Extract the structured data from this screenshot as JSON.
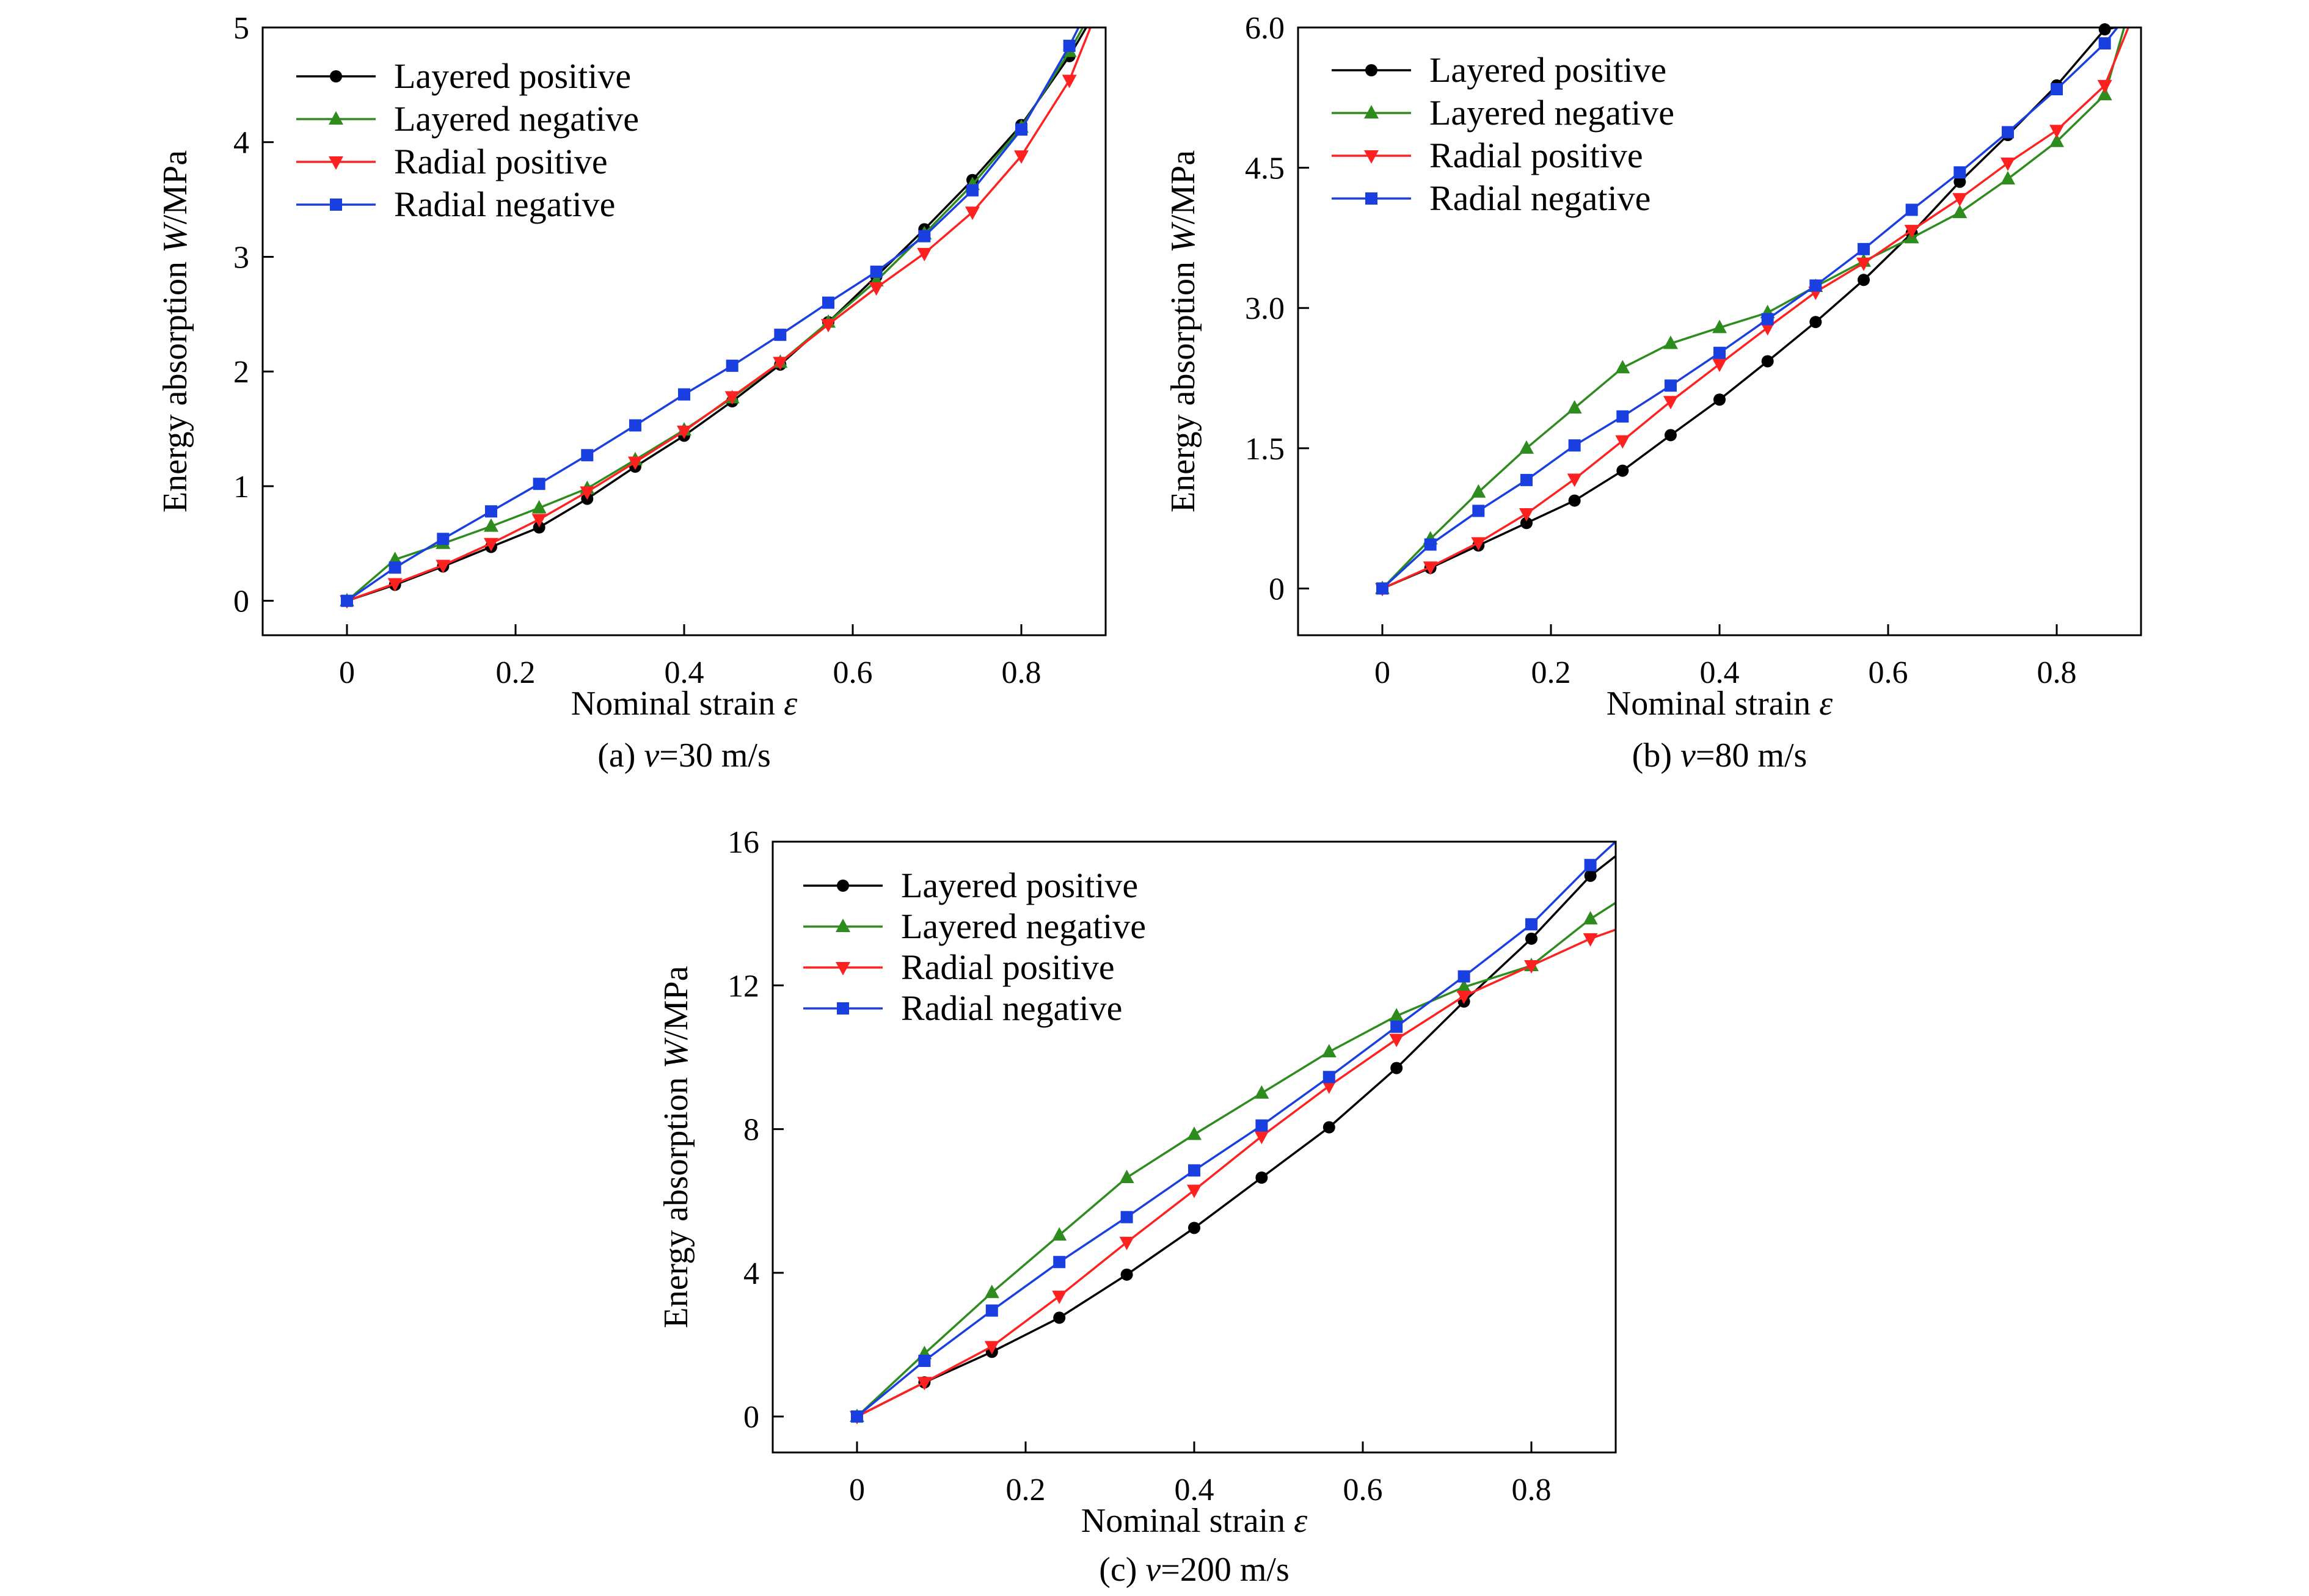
{
  "chart_data": [
    {
      "type": "line",
      "caption": {
        "prefix": "(a) ",
        "var": "v",
        "rest": "=30 m/s"
      },
      "xlabel": {
        "text": "Nominal strain ",
        "var": "ε"
      },
      "ylabel": {
        "text": "Energy absorption ",
        "var": "W",
        "unit": "/MPa"
      },
      "xlim": [
        -0.1,
        0.9
      ],
      "ylim": [
        -0.3,
        5
      ],
      "xticks": [
        0,
        0.2,
        0.4,
        0.6,
        0.8
      ],
      "xtick_labels": [
        "0",
        "0.2",
        "0.4",
        "0.6",
        "0.8"
      ],
      "yticks": [
        0,
        1,
        2,
        3,
        4,
        5
      ],
      "ytick_labels": [
        "0",
        "1",
        "2",
        "3",
        "4",
        "5"
      ],
      "legend": "top-left",
      "grid": false,
      "series": [
        {
          "name": "Layered positive",
          "color": "#000000",
          "marker": "circle",
          "points": [
            [
              0,
              0
            ],
            [
              0.057,
              0.14
            ],
            [
              0.114,
              0.3
            ],
            [
              0.171,
              0.47
            ],
            [
              0.228,
              0.64
            ],
            [
              0.285,
              0.89
            ],
            [
              0.342,
              1.17
            ],
            [
              0.4,
              1.44
            ],
            [
              0.457,
              1.74
            ],
            [
              0.514,
              2.06
            ],
            [
              0.571,
              2.43
            ],
            [
              0.628,
              2.83
            ],
            [
              0.685,
              3.24
            ],
            [
              0.742,
              3.67
            ],
            [
              0.8,
              4.15
            ],
            [
              0.857,
              4.75
            ]
          ],
          "tail": [
            0.877,
            5.0
          ]
        },
        {
          "name": "Layered negative",
          "color": "#2e8b1e",
          "marker": "triangle-up",
          "points": [
            [
              0,
              0
            ],
            [
              0.057,
              0.36
            ],
            [
              0.114,
              0.5
            ],
            [
              0.171,
              0.65
            ],
            [
              0.228,
              0.81
            ],
            [
              0.285,
              0.98
            ],
            [
              0.342,
              1.23
            ],
            [
              0.4,
              1.49
            ],
            [
              0.457,
              1.77
            ],
            [
              0.514,
              2.08
            ],
            [
              0.571,
              2.43
            ],
            [
              0.628,
              2.79
            ],
            [
              0.685,
              3.2
            ],
            [
              0.742,
              3.63
            ],
            [
              0.8,
              4.13
            ],
            [
              0.857,
              4.79
            ]
          ],
          "tail": [
            0.873,
            5.0
          ]
        },
        {
          "name": "Radial positive",
          "color": "#ff2020",
          "marker": "triangle-down",
          "points": [
            [
              0,
              0
            ],
            [
              0.057,
              0.15
            ],
            [
              0.114,
              0.31
            ],
            [
              0.171,
              0.5
            ],
            [
              0.228,
              0.71
            ],
            [
              0.285,
              0.95
            ],
            [
              0.342,
              1.21
            ],
            [
              0.4,
              1.48
            ],
            [
              0.457,
              1.78
            ],
            [
              0.514,
              2.08
            ],
            [
              0.571,
              2.41
            ],
            [
              0.628,
              2.73
            ],
            [
              0.685,
              3.03
            ],
            [
              0.742,
              3.39
            ],
            [
              0.8,
              3.88
            ],
            [
              0.857,
              4.54
            ]
          ],
          "tail": [
            0.882,
            5.0
          ]
        },
        {
          "name": "Radial negative",
          "color": "#1a3fe0",
          "marker": "square",
          "points": [
            [
              0,
              0
            ],
            [
              0.057,
              0.29
            ],
            [
              0.114,
              0.54
            ],
            [
              0.171,
              0.78
            ],
            [
              0.228,
              1.02
            ],
            [
              0.285,
              1.27
            ],
            [
              0.342,
              1.53
            ],
            [
              0.4,
              1.8
            ],
            [
              0.457,
              2.05
            ],
            [
              0.514,
              2.32
            ],
            [
              0.571,
              2.6
            ],
            [
              0.628,
              2.87
            ],
            [
              0.685,
              3.18
            ],
            [
              0.742,
              3.58
            ],
            [
              0.8,
              4.11
            ],
            [
              0.857,
              4.84
            ]
          ],
          "tail": [
            0.868,
            5.0
          ]
        }
      ]
    },
    {
      "type": "line",
      "caption": {
        "prefix": "(b) ",
        "var": "v",
        "rest": "=80 m/s"
      },
      "xlabel": {
        "text": "Nominal strain ",
        "var": "ε"
      },
      "ylabel": {
        "text": "Energy absorption ",
        "var": "W",
        "unit": "/MPa"
      },
      "xlim": [
        -0.1,
        0.9
      ],
      "ylim": [
        -0.5,
        6
      ],
      "xticks": [
        0,
        0.2,
        0.4,
        0.6,
        0.8
      ],
      "xtick_labels": [
        "0",
        "0.2",
        "0.4",
        "0.6",
        "0.8"
      ],
      "yticks": [
        0,
        1.5,
        3,
        4.5,
        6
      ],
      "ytick_labels": [
        "0",
        "1.5",
        "3.0",
        "4.5",
        "6.0"
      ],
      "legend": "top-left",
      "grid": false,
      "series": [
        {
          "name": "Layered positive",
          "color": "#000000",
          "marker": "circle",
          "points": [
            [
              0,
              0
            ],
            [
              0.057,
              0.22
            ],
            [
              0.114,
              0.46
            ],
            [
              0.171,
              0.7
            ],
            [
              0.228,
              0.94
            ],
            [
              0.285,
              1.26
            ],
            [
              0.342,
              1.64
            ],
            [
              0.4,
              2.02
            ],
            [
              0.457,
              2.43
            ],
            [
              0.514,
              2.85
            ],
            [
              0.571,
              3.3
            ],
            [
              0.628,
              3.8
            ],
            [
              0.685,
              4.35
            ],
            [
              0.742,
              4.85
            ],
            [
              0.8,
              5.38
            ],
            [
              0.857,
              5.98
            ]
          ],
          "tail": [
            0.87,
            6.0
          ]
        },
        {
          "name": "Layered negative",
          "color": "#2e8b1e",
          "marker": "triangle-up",
          "points": [
            [
              0,
              0
            ],
            [
              0.057,
              0.53
            ],
            [
              0.114,
              1.03
            ],
            [
              0.171,
              1.5
            ],
            [
              0.228,
              1.93
            ],
            [
              0.285,
              2.36
            ],
            [
              0.342,
              2.62
            ],
            [
              0.4,
              2.79
            ],
            [
              0.457,
              2.95
            ],
            [
              0.514,
              3.23
            ],
            [
              0.571,
              3.5
            ],
            [
              0.628,
              3.75
            ],
            [
              0.685,
              4.02
            ],
            [
              0.742,
              4.38
            ],
            [
              0.8,
              4.78
            ],
            [
              0.857,
              5.28
            ]
          ],
          "tail": [
            0.88,
            6.0
          ]
        },
        {
          "name": "Radial positive",
          "color": "#ff2020",
          "marker": "triangle-down",
          "points": [
            [
              0,
              0
            ],
            [
              0.057,
              0.23
            ],
            [
              0.114,
              0.49
            ],
            [
              0.171,
              0.8
            ],
            [
              0.228,
              1.17
            ],
            [
              0.285,
              1.58
            ],
            [
              0.342,
              2.0
            ],
            [
              0.4,
              2.4
            ],
            [
              0.457,
              2.79
            ],
            [
              0.514,
              3.17
            ],
            [
              0.571,
              3.48
            ],
            [
              0.628,
              3.83
            ],
            [
              0.685,
              4.17
            ],
            [
              0.742,
              4.55
            ],
            [
              0.8,
              4.9
            ],
            [
              0.857,
              5.38
            ]
          ],
          "tail": [
            0.885,
            6.0
          ]
        },
        {
          "name": "Radial negative",
          "color": "#1a3fe0",
          "marker": "square",
          "points": [
            [
              0,
              0
            ],
            [
              0.057,
              0.47
            ],
            [
              0.114,
              0.83
            ],
            [
              0.171,
              1.16
            ],
            [
              0.228,
              1.53
            ],
            [
              0.285,
              1.84
            ],
            [
              0.342,
              2.17
            ],
            [
              0.4,
              2.52
            ],
            [
              0.457,
              2.88
            ],
            [
              0.514,
              3.24
            ],
            [
              0.571,
              3.63
            ],
            [
              0.628,
              4.05
            ],
            [
              0.685,
              4.45
            ],
            [
              0.742,
              4.88
            ],
            [
              0.8,
              5.34
            ],
            [
              0.857,
              5.83
            ]
          ],
          "tail": [
            0.872,
            6.0
          ]
        }
      ]
    },
    {
      "type": "line",
      "caption": {
        "prefix": "(c) ",
        "var": "v",
        "rest": "=200 m/s"
      },
      "xlabel": {
        "text": "Nominal strain ",
        "var": "ε"
      },
      "ylabel": {
        "text": "Energy absorption  ",
        "var": "W",
        "unit": "/MPa"
      },
      "xlim": [
        -0.1,
        0.9
      ],
      "ylim": [
        -1,
        16
      ],
      "xticks": [
        0,
        0.2,
        0.4,
        0.6,
        0.8
      ],
      "xtick_labels": [
        "0",
        "0.2",
        "0.4",
        "0.6",
        "0.8"
      ],
      "yticks": [
        0,
        4,
        8,
        12,
        16
      ],
      "ytick_labels": [
        "0",
        "4",
        "8",
        "12",
        "16"
      ],
      "legend": "top-left",
      "grid": false,
      "series": [
        {
          "name": "Layered positive",
          "color": "#000000",
          "marker": "circle",
          "points": [
            [
              0,
              0
            ],
            [
              0.08,
              0.95
            ],
            [
              0.16,
              1.8
            ],
            [
              0.24,
              2.75
            ],
            [
              0.32,
              3.95
            ],
            [
              0.4,
              5.25
            ],
            [
              0.48,
              6.65
            ],
            [
              0.56,
              8.05
            ],
            [
              0.64,
              9.7
            ],
            [
              0.72,
              11.55
            ],
            [
              0.8,
              13.3
            ],
            [
              0.87,
              15.05
            ]
          ],
          "tail": [
            0.9,
            15.6
          ]
        },
        {
          "name": "Layered negative",
          "color": "#2e8b1e",
          "marker": "triangle-up",
          "points": [
            [
              0,
              0
            ],
            [
              0.08,
              1.75
            ],
            [
              0.16,
              3.45
            ],
            [
              0.24,
              5.05
            ],
            [
              0.32,
              6.65
            ],
            [
              0.4,
              7.85
            ],
            [
              0.48,
              9.0
            ],
            [
              0.56,
              10.15
            ],
            [
              0.64,
              11.15
            ],
            [
              0.72,
              11.95
            ],
            [
              0.8,
              12.55
            ],
            [
              0.87,
              13.85
            ]
          ],
          "tail": [
            0.9,
            14.3
          ]
        },
        {
          "name": "Radial positive",
          "color": "#ff2020",
          "marker": "triangle-down",
          "points": [
            [
              0,
              0
            ],
            [
              0.08,
              0.95
            ],
            [
              0.16,
              1.95
            ],
            [
              0.24,
              3.35
            ],
            [
              0.32,
              4.85
            ],
            [
              0.4,
              6.3
            ],
            [
              0.48,
              7.8
            ],
            [
              0.56,
              9.2
            ],
            [
              0.64,
              10.5
            ],
            [
              0.72,
              11.7
            ],
            [
              0.8,
              12.55
            ],
            [
              0.87,
              13.3
            ]
          ],
          "tail": [
            0.9,
            13.55
          ]
        },
        {
          "name": "Radial negative",
          "color": "#1a3fe0",
          "marker": "square",
          "points": [
            [
              0,
              0
            ],
            [
              0.08,
              1.55
            ],
            [
              0.16,
              2.95
            ],
            [
              0.24,
              4.3
            ],
            [
              0.32,
              5.55
            ],
            [
              0.4,
              6.85
            ],
            [
              0.48,
              8.1
            ],
            [
              0.56,
              9.45
            ],
            [
              0.64,
              10.85
            ],
            [
              0.72,
              12.25
            ],
            [
              0.8,
              13.7
            ],
            [
              0.87,
              15.35
            ]
          ],
          "tail": [
            0.9,
            16.0
          ]
        }
      ]
    }
  ]
}
